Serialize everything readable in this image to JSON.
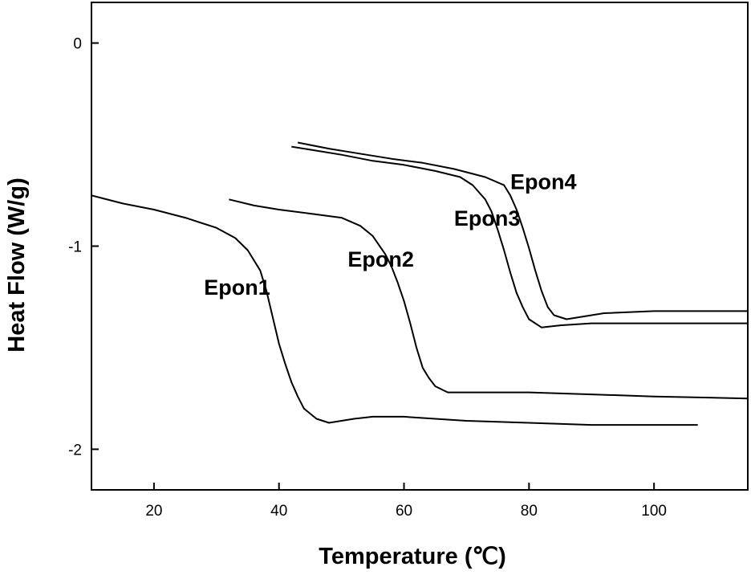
{
  "chart_data": {
    "type": "line",
    "title": "",
    "xlabel": "Temperature (℃)",
    "ylabel": "Heat Flow (W/g)",
    "xlim": [
      10,
      115
    ],
    "ylim": [
      -2.2,
      0.2
    ],
    "xticks": [
      20,
      40,
      60,
      80,
      100
    ],
    "yticks": [
      0,
      -1,
      -2
    ],
    "grid": false,
    "legend": "none",
    "series": [
      {
        "name": "Epon1",
        "label_at": [
          28,
          -1.24
        ],
        "points": [
          [
            10,
            -0.75
          ],
          [
            15,
            -0.79
          ],
          [
            20,
            -0.82
          ],
          [
            25,
            -0.86
          ],
          [
            30,
            -0.91
          ],
          [
            33,
            -0.96
          ],
          [
            35,
            -1.02
          ],
          [
            37,
            -1.12
          ],
          [
            38,
            -1.22
          ],
          [
            39,
            -1.35
          ],
          [
            40,
            -1.48
          ],
          [
            41,
            -1.58
          ],
          [
            42,
            -1.67
          ],
          [
            43,
            -1.74
          ],
          [
            44,
            -1.8
          ],
          [
            46,
            -1.85
          ],
          [
            48,
            -1.87
          ],
          [
            50,
            -1.86
          ],
          [
            52,
            -1.85
          ],
          [
            55,
            -1.84
          ],
          [
            60,
            -1.84
          ],
          [
            65,
            -1.85
          ],
          [
            70,
            -1.86
          ],
          [
            80,
            -1.87
          ],
          [
            90,
            -1.88
          ],
          [
            100,
            -1.88
          ],
          [
            107,
            -1.88
          ]
        ]
      },
      {
        "name": "Epon2",
        "label_at": [
          51,
          -1.1
        ],
        "points": [
          [
            32,
            -0.77
          ],
          [
            36,
            -0.8
          ],
          [
            40,
            -0.82
          ],
          [
            45,
            -0.84
          ],
          [
            50,
            -0.86
          ],
          [
            53,
            -0.9
          ],
          [
            55,
            -0.95
          ],
          [
            57,
            -1.04
          ],
          [
            58,
            -1.1
          ],
          [
            59,
            -1.18
          ],
          [
            60,
            -1.27
          ],
          [
            61,
            -1.38
          ],
          [
            62,
            -1.5
          ],
          [
            63,
            -1.6
          ],
          [
            64,
            -1.65
          ],
          [
            65,
            -1.69
          ],
          [
            67,
            -1.72
          ],
          [
            70,
            -1.72
          ],
          [
            80,
            -1.72
          ],
          [
            90,
            -1.73
          ],
          [
            100,
            -1.74
          ],
          [
            115,
            -1.75
          ]
        ]
      },
      {
        "name": "Epon3",
        "label_at": [
          68,
          -0.9
        ],
        "points": [
          [
            42,
            -0.51
          ],
          [
            46,
            -0.53
          ],
          [
            50,
            -0.55
          ],
          [
            55,
            -0.58
          ],
          [
            60,
            -0.6
          ],
          [
            65,
            -0.63
          ],
          [
            69,
            -0.66
          ],
          [
            71,
            -0.7
          ],
          [
            73,
            -0.77
          ],
          [
            74,
            -0.83
          ],
          [
            75,
            -0.92
          ],
          [
            76,
            -1.02
          ],
          [
            77,
            -1.13
          ],
          [
            78,
            -1.23
          ],
          [
            79,
            -1.3
          ],
          [
            80,
            -1.36
          ],
          [
            82,
            -1.4
          ],
          [
            85,
            -1.39
          ],
          [
            90,
            -1.38
          ],
          [
            100,
            -1.38
          ],
          [
            115,
            -1.38
          ]
        ]
      },
      {
        "name": "Epon4",
        "label_at": [
          77,
          -0.72
        ],
        "points": [
          [
            43,
            -0.49
          ],
          [
            48,
            -0.52
          ],
          [
            52,
            -0.54
          ],
          [
            58,
            -0.57
          ],
          [
            63,
            -0.59
          ],
          [
            68,
            -0.62
          ],
          [
            73,
            -0.66
          ],
          [
            76,
            -0.7
          ],
          [
            77,
            -0.75
          ],
          [
            78,
            -0.82
          ],
          [
            79,
            -0.91
          ],
          [
            80,
            -1.01
          ],
          [
            81,
            -1.12
          ],
          [
            82,
            -1.22
          ],
          [
            83,
            -1.3
          ],
          [
            84,
            -1.34
          ],
          [
            86,
            -1.36
          ],
          [
            88,
            -1.35
          ],
          [
            92,
            -1.33
          ],
          [
            100,
            -1.32
          ],
          [
            115,
            -1.32
          ]
        ]
      }
    ]
  }
}
